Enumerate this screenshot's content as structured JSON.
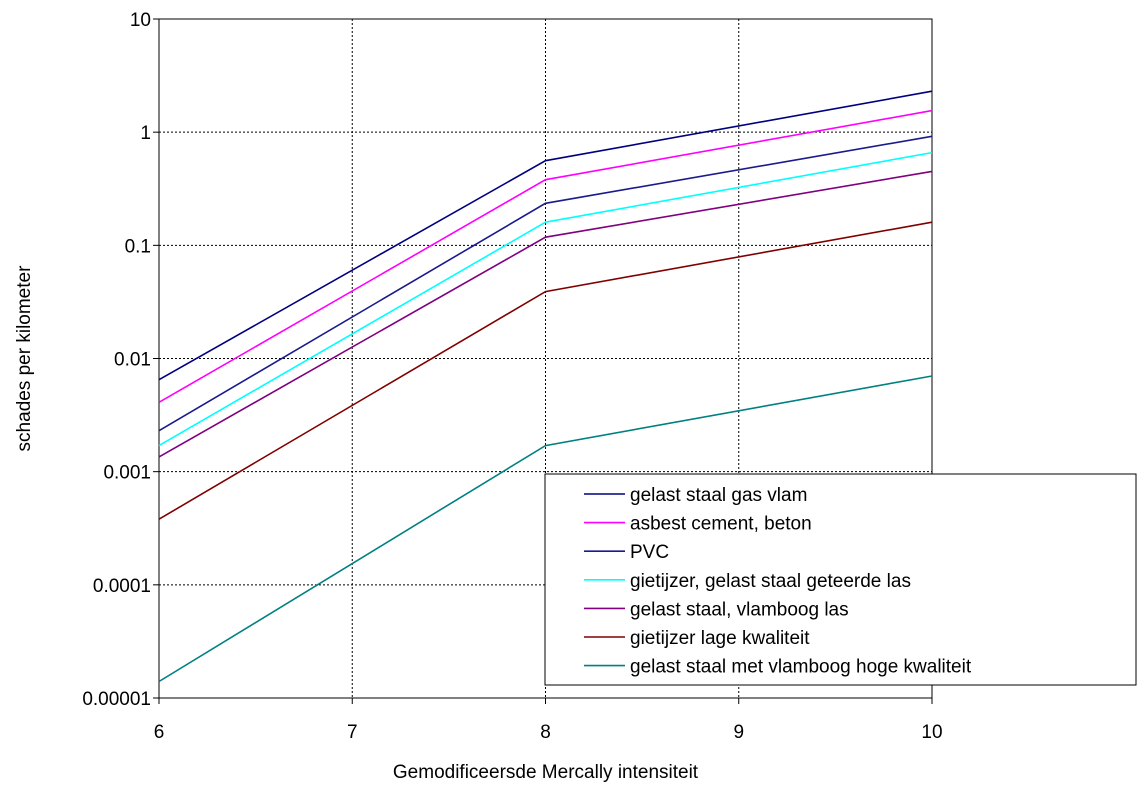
{
  "chart_data": {
    "type": "line",
    "xlabel": "Gemodificeersde Mercally intensiteit",
    "ylabel": "schades per kilometer",
    "x": [
      6,
      8,
      10
    ],
    "xlim": [
      6,
      10
    ],
    "xticks": [
      6,
      7,
      8,
      9,
      10
    ],
    "xtick_labels": [
      "6",
      "7",
      "8",
      "9",
      "10"
    ],
    "y_scale": "log",
    "ylim": [
      1e-05,
      10
    ],
    "yticks": [
      1e-05,
      0.0001,
      0.001,
      0.01,
      0.1,
      1,
      10
    ],
    "ytick_labels": [
      "0.00001",
      "0.0001",
      "0.001",
      "0.01",
      "0.1",
      "1",
      "10"
    ],
    "grid": true,
    "legend_position": "bottom-right",
    "series": [
      {
        "name": "gelast staal gas vlam",
        "color": "#00007f",
        "values": [
          0.0065,
          0.56,
          2.3
        ]
      },
      {
        "name": "asbest cement, beton",
        "color": "#ff00ff",
        "values": [
          0.0041,
          0.38,
          1.55
        ]
      },
      {
        "name": "PVC",
        "color": "#1a1a8c",
        "values": [
          0.0023,
          0.235,
          0.92
        ]
      },
      {
        "name": "gietijzer, gelast staal geteerde las",
        "color": "#00ffff",
        "values": [
          0.0017,
          0.16,
          0.66
        ]
      },
      {
        "name": "gelast staal, vlamboog las",
        "color": "#800080",
        "values": [
          0.00135,
          0.118,
          0.45
        ]
      },
      {
        "name": "gietijzer lage kwaliteit",
        "color": "#800000",
        "values": [
          0.00038,
          0.039,
          0.16
        ]
      },
      {
        "name": "gelast staal met vlamboog hoge kwaliteit",
        "color": "#008080",
        "values": [
          1.4e-05,
          0.0017,
          0.007
        ]
      }
    ]
  }
}
